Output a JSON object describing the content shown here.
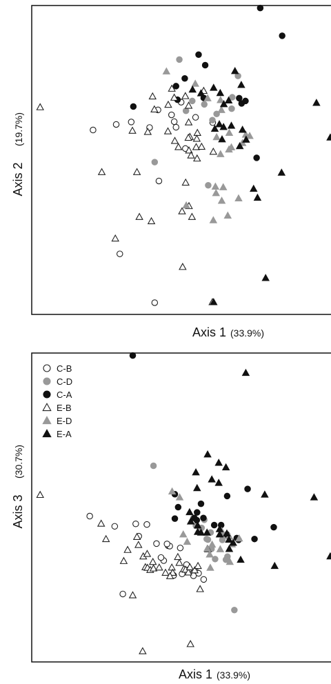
{
  "groups": [
    {
      "key": "C-B",
      "label": "C-B",
      "shape": "circle",
      "fill": "#ffffff",
      "stroke": "#222222"
    },
    {
      "key": "C-D",
      "label": "C-D",
      "shape": "circle",
      "fill": "#999999",
      "stroke": "#999999"
    },
    {
      "key": "C-A",
      "label": "C-A",
      "shape": "circle",
      "fill": "#111111",
      "stroke": "#111111"
    },
    {
      "key": "E-B",
      "label": "E-B",
      "shape": "triangle",
      "fill": "#ffffff",
      "stroke": "#222222"
    },
    {
      "key": "E-D",
      "label": "E-D",
      "shape": "triangle",
      "fill": "#999999",
      "stroke": "#999999"
    },
    {
      "key": "E-A",
      "label": "E-A",
      "shape": "triangle",
      "fill": "#111111",
      "stroke": "#111111"
    }
  ],
  "chart_data": [
    {
      "type": "scatter",
      "xlabel": "Axis 1",
      "xlabel_pct": "(33.9%)",
      "ylabel": "Axis 2",
      "ylabel_pct": "(19.7%)",
      "xlim": [
        0,
        1
      ],
      "ylim": [
        0,
        1
      ],
      "axis_ticks": false,
      "legend": false,
      "series": [
        {
          "group": "C-B",
          "points": [
            [
              0.204,
              0.597
            ],
            [
              0.281,
              0.615
            ],
            [
              0.331,
              0.623
            ],
            [
              0.42,
              0.662
            ],
            [
              0.392,
              0.605
            ],
            [
              0.465,
              0.646
            ],
            [
              0.545,
              0.638
            ],
            [
              0.497,
              0.687
            ],
            [
              0.48,
              0.606
            ],
            [
              0.602,
              0.621
            ],
            [
              0.511,
              0.537
            ],
            [
              0.423,
              0.432
            ],
            [
              0.293,
              0.196
            ],
            [
              0.409,
              0.038
            ],
            [
              0.474,
              0.624
            ]
          ]
        },
        {
          "group": "C-D",
          "points": [
            [
              0.491,
              0.825
            ],
            [
              0.686,
              0.772
            ],
            [
              0.534,
              0.691
            ],
            [
              0.513,
              0.659
            ],
            [
              0.615,
              0.649
            ],
            [
              0.665,
              0.666
            ],
            [
              0.667,
              0.703
            ],
            [
              0.409,
              0.493
            ],
            [
              0.587,
              0.418
            ],
            [
              0.574,
              0.68
            ],
            [
              0.601,
              0.629
            ]
          ]
        },
        {
          "group": "C-A",
          "points": [
            [
              0.76,
              0.992
            ],
            [
              0.833,
              0.902
            ],
            [
              0.555,
              0.841
            ],
            [
              0.577,
              0.807
            ],
            [
              0.48,
              0.739
            ],
            [
              0.485,
              0.695
            ],
            [
              0.572,
              0.701
            ],
            [
              0.69,
              0.7
            ],
            [
              0.711,
              0.691
            ],
            [
              0.698,
              0.683
            ],
            [
              0.338,
              0.673
            ],
            [
              0.748,
              0.507
            ],
            [
              0.509,
              0.764
            ]
          ]
        },
        {
          "group": "E-B",
          "points": [
            [
              0.028,
              0.671
            ],
            [
              0.335,
              0.595
            ],
            [
              0.386,
              0.591
            ],
            [
              0.408,
              0.664
            ],
            [
              0.454,
              0.679
            ],
            [
              0.466,
              0.731
            ],
            [
              0.522,
              0.622
            ],
            [
              0.526,
              0.575
            ],
            [
              0.551,
              0.588
            ],
            [
              0.453,
              0.593
            ],
            [
              0.476,
              0.562
            ],
            [
              0.523,
              0.531
            ],
            [
              0.53,
              0.515
            ],
            [
              0.547,
              0.542
            ],
            [
              0.565,
              0.543
            ],
            [
              0.488,
              0.542
            ],
            [
              0.55,
              0.505
            ],
            [
              0.549,
              0.569
            ],
            [
              0.233,
              0.461
            ],
            [
              0.35,
              0.461
            ],
            [
              0.512,
              0.427
            ],
            [
              0.523,
              0.351
            ],
            [
              0.5,
              0.334
            ],
            [
              0.533,
              0.316
            ],
            [
              0.358,
              0.316
            ],
            [
              0.398,
              0.302
            ],
            [
              0.278,
              0.246
            ],
            [
              0.502,
              0.154
            ],
            [
              0.601,
              0.04
            ],
            [
              0.402,
              0.706
            ],
            [
              0.511,
              0.707
            ],
            [
              0.474,
              0.702
            ],
            [
              0.522,
              0.676
            ],
            [
              0.572,
              0.724
            ],
            [
              0.604,
              0.527
            ],
            [
              0.521,
              0.572
            ]
          ]
        },
        {
          "group": "E-D",
          "points": [
            [
              0.448,
              0.787
            ],
            [
              0.544,
              0.747
            ],
            [
              0.585,
              0.7
            ],
            [
              0.628,
              0.694
            ],
            [
              0.631,
              0.662
            ],
            [
              0.657,
              0.588
            ],
            [
              0.615,
              0.574
            ],
            [
              0.628,
              0.519
            ],
            [
              0.656,
              0.534
            ],
            [
              0.701,
              0.555
            ],
            [
              0.725,
              0.578
            ],
            [
              0.712,
              0.582
            ],
            [
              0.664,
              0.541
            ],
            [
              0.611,
              0.414
            ],
            [
              0.637,
              0.412
            ],
            [
              0.613,
              0.393
            ],
            [
              0.632,
              0.368
            ],
            [
              0.688,
              0.376
            ],
            [
              0.514,
              0.353
            ],
            [
              0.604,
              0.305
            ],
            [
              0.652,
              0.32
            ]
          ]
        },
        {
          "group": "E-A",
          "points": [
            [
              0.535,
              0.728
            ],
            [
              0.563,
              0.716
            ],
            [
              0.605,
              0.734
            ],
            [
              0.627,
              0.717
            ],
            [
              0.639,
              0.681
            ],
            [
              0.655,
              0.693
            ],
            [
              0.697,
              0.743
            ],
            [
              0.676,
              0.788
            ],
            [
              0.993,
              0.573
            ],
            [
              0.947,
              0.685
            ],
            [
              0.831,
              0.459
            ],
            [
              0.701,
              0.598
            ],
            [
              0.713,
              0.566
            ],
            [
              0.692,
              0.545
            ],
            [
              0.664,
              0.611
            ],
            [
              0.638,
              0.607
            ],
            [
              0.624,
              0.616
            ],
            [
              0.609,
              0.601
            ],
            [
              0.633,
              0.567
            ],
            [
              0.738,
              0.407
            ],
            [
              0.751,
              0.378
            ],
            [
              0.778,
              0.118
            ],
            [
              0.605,
              0.04
            ]
          ]
        }
      ]
    },
    {
      "type": "scatter",
      "xlabel": "Axis 1",
      "xlabel_pct": "(33.9%)",
      "ylabel": "Axis 3",
      "ylabel_pct": "(30.7%)",
      "xlim": [
        0,
        1
      ],
      "ylim": [
        0,
        1
      ],
      "axis_ticks": false,
      "legend": true,
      "legend_position": "top-left",
      "series": [
        {
          "group": "C-B",
          "points": [
            [
              0.193,
              0.472
            ],
            [
              0.276,
              0.439
            ],
            [
              0.346,
              0.447
            ],
            [
              0.383,
              0.445
            ],
            [
              0.356,
              0.407
            ],
            [
              0.415,
              0.383
            ],
            [
              0.454,
              0.376
            ],
            [
              0.459,
              0.375
            ],
            [
              0.45,
              0.382
            ],
            [
              0.494,
              0.369
            ],
            [
              0.439,
              0.328
            ],
            [
              0.43,
              0.338
            ],
            [
              0.515,
              0.315
            ],
            [
              0.516,
              0.292
            ],
            [
              0.521,
              0.298
            ],
            [
              0.536,
              0.286
            ],
            [
              0.546,
              0.292
            ],
            [
              0.538,
              0.279
            ],
            [
              0.555,
              0.287
            ],
            [
              0.572,
              0.267
            ],
            [
              0.5,
              0.285
            ],
            [
              0.472,
              0.28
            ],
            [
              0.303,
              0.22
            ]
          ]
        },
        {
          "group": "C-D",
          "points": [
            [
              0.405,
              0.635
            ],
            [
              0.546,
              0.441
            ],
            [
              0.538,
              0.466
            ],
            [
              0.574,
              0.46
            ],
            [
              0.565,
              0.434
            ],
            [
              0.582,
              0.398
            ],
            [
              0.595,
              0.419
            ],
            [
              0.634,
              0.395
            ],
            [
              0.642,
              0.41
            ],
            [
              0.586,
              0.396
            ],
            [
              0.651,
              0.341
            ],
            [
              0.646,
              0.331
            ],
            [
              0.61,
              0.333
            ],
            [
              0.598,
              0.366
            ],
            [
              0.674,
              0.168
            ]
          ]
        },
        {
          "group": "C-A",
          "points": [
            [
              0.336,
              0.992
            ],
            [
              0.476,
              0.543
            ],
            [
              0.563,
              0.512
            ],
            [
              0.65,
              0.537
            ],
            [
              0.718,
              0.56
            ],
            [
              0.487,
              0.501
            ],
            [
              0.55,
              0.484
            ],
            [
              0.541,
              0.466
            ],
            [
              0.549,
              0.459
            ],
            [
              0.571,
              0.466
            ],
            [
              0.607,
              0.443
            ],
            [
              0.63,
              0.443
            ],
            [
              0.65,
              0.412
            ],
            [
              0.682,
              0.401
            ],
            [
              0.741,
              0.398
            ],
            [
              0.805,
              0.436
            ],
            [
              0.688,
              0.395
            ],
            [
              0.476,
              0.464
            ]
          ]
        },
        {
          "group": "E-B",
          "points": [
            [
              0.028,
              0.541
            ],
            [
              0.231,
              0.448
            ],
            [
              0.247,
              0.398
            ],
            [
              0.319,
              0.363
            ],
            [
              0.35,
              0.405
            ],
            [
              0.355,
              0.379
            ],
            [
              0.371,
              0.342
            ],
            [
              0.306,
              0.327
            ],
            [
              0.384,
              0.35
            ],
            [
              0.403,
              0.324
            ],
            [
              0.378,
              0.307
            ],
            [
              0.385,
              0.305
            ],
            [
              0.394,
              0.298
            ],
            [
              0.405,
              0.303
            ],
            [
              0.424,
              0.306
            ],
            [
              0.445,
              0.289
            ],
            [
              0.466,
              0.306
            ],
            [
              0.469,
              0.289
            ],
            [
              0.486,
              0.34
            ],
            [
              0.491,
              0.321
            ],
            [
              0.506,
              0.301
            ],
            [
              0.512,
              0.299
            ],
            [
              0.521,
              0.29
            ],
            [
              0.526,
              0.307
            ],
            [
              0.542,
              0.297
            ],
            [
              0.553,
              0.311
            ],
            [
              0.586,
              0.365
            ],
            [
              0.56,
              0.236
            ],
            [
              0.336,
              0.216
            ],
            [
              0.369,
              0.035
            ],
            [
              0.528,
              0.058
            ],
            [
              0.46,
              0.278
            ]
          ]
        },
        {
          "group": "E-D",
          "points": [
            [
              0.467,
              0.552
            ],
            [
              0.492,
              0.533
            ],
            [
              0.504,
              0.413
            ],
            [
              0.517,
              0.389
            ],
            [
              0.584,
              0.367
            ],
            [
              0.6,
              0.38
            ],
            [
              0.632,
              0.424
            ],
            [
              0.657,
              0.407
            ],
            [
              0.627,
              0.365
            ],
            [
              0.594,
              0.305
            ],
            [
              0.592,
              0.348
            ],
            [
              0.659,
              0.324
            ],
            [
              0.666,
              0.381
            ],
            [
              0.69,
              0.4
            ]
          ]
        },
        {
          "group": "E-A",
          "points": [
            [
              0.712,
              0.936
            ],
            [
              0.585,
              0.672
            ],
            [
              0.546,
              0.614
            ],
            [
              0.55,
              0.563
            ],
            [
              0.599,
              0.591
            ],
            [
              0.622,
              0.58
            ],
            [
              0.622,
              0.645
            ],
            [
              0.646,
              0.63
            ],
            [
              0.775,
              0.542
            ],
            [
              0.939,
              0.533
            ],
            [
              0.993,
              0.342
            ],
            [
              0.808,
              0.311
            ],
            [
              0.525,
              0.485
            ],
            [
              0.529,
              0.455
            ],
            [
              0.552,
              0.421
            ],
            [
              0.563,
              0.419
            ],
            [
              0.583,
              0.419
            ],
            [
              0.625,
              0.43
            ],
            [
              0.625,
              0.413
            ],
            [
              0.649,
              0.416
            ],
            [
              0.656,
              0.396
            ],
            [
              0.67,
              0.386
            ],
            [
              0.657,
              0.366
            ],
            [
              0.695,
              0.331
            ],
            [
              0.552,
              0.442
            ]
          ]
        }
      ]
    }
  ]
}
